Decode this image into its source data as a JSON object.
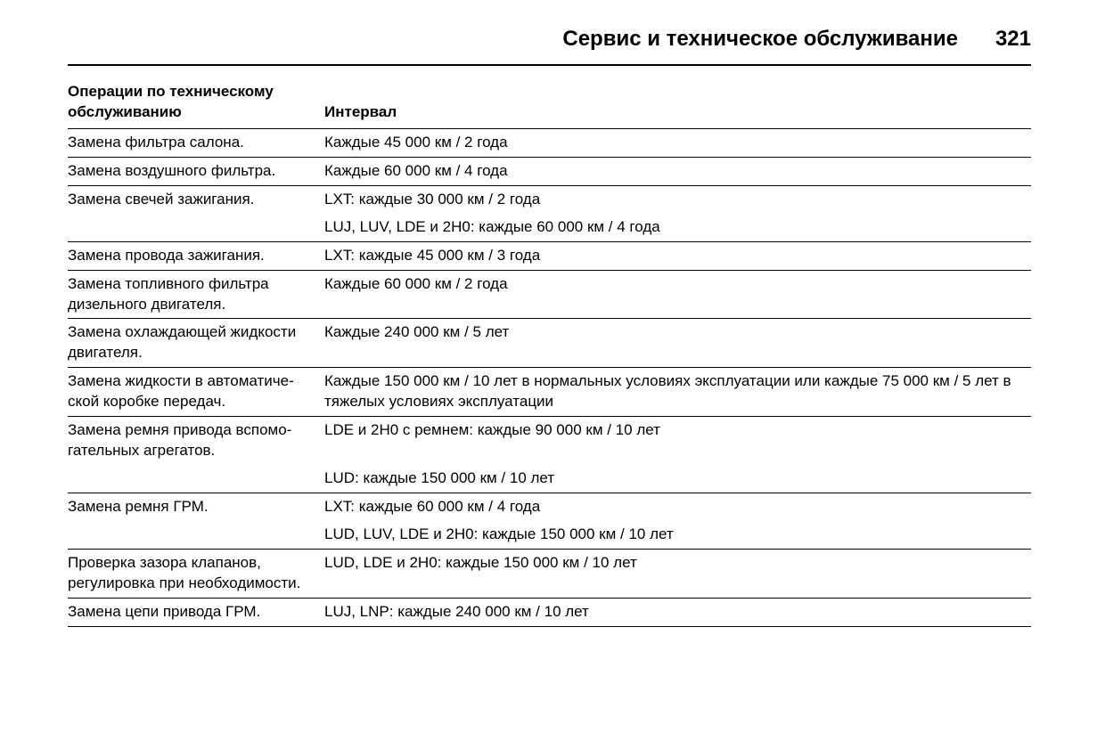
{
  "header": {
    "title": "Сервис и техническое обслуживание",
    "page_number": "321"
  },
  "table": {
    "col_operation_header_line1": "Операции по техническому",
    "col_operation_header_line2": "обслуживанию",
    "col_interval_header": "Интервал",
    "rows": [
      {
        "op": "Замена фильтра салона.",
        "int": "Каждые 45 000 км / 2 года"
      },
      {
        "op": "Замена воздушного фильтра.",
        "int": "Каждые 60 000 км / 4 года"
      },
      {
        "op": "Замена свечей зажигания.",
        "int": "LXT: каждые 30 000 км / 2 года"
      },
      {
        "op": "",
        "int": "LUJ, LUV, LDE и 2H0: каждые 60 000 км / 4 года"
      },
      {
        "op": "Замена провода зажигания.",
        "int": "LXT: каждые 45 000 км / 3 года"
      },
      {
        "op": "Замена топливного фильтра дизельного двигателя.",
        "int": "Каждые 60 000 км / 2 года"
      },
      {
        "op": "Замена охлаждающей жидкости двигателя.",
        "int": "Каждые 240 000 км / 5 лет"
      },
      {
        "op": "Замена жидкости в автоматиче­ской коробке передач.",
        "int": "Каждые 150 000 км / 10 лет в нормальных условиях эксплуатации или каждые 75 000 км / 5 лет в тяжелых условиях эксплуатации"
      },
      {
        "op": "Замена ремня привода вспомо­гательных агрегатов.",
        "int": "LDE и 2H0 с ремнем: каждые 90 000 км / 10 лет"
      },
      {
        "op": "",
        "int": "LUD: каждые 150 000 км / 10 лет"
      },
      {
        "op": "Замена ремня ГРМ.",
        "int": "LXT: каждые 60 000 км / 4 года"
      },
      {
        "op": "",
        "int": "LUD, LUV, LDE и 2H0: каждые 150 000 км / 10 лет"
      },
      {
        "op": "Проверка зазора клапанов, регулировка при необходимости.",
        "int": "LUD, LDE и 2H0: каждые 150 000 км / 10 лет"
      },
      {
        "op": "Замена цепи привода ГРМ.",
        "int": "LUJ, LNP: каждые 240 000 км / 10 лет"
      }
    ]
  }
}
